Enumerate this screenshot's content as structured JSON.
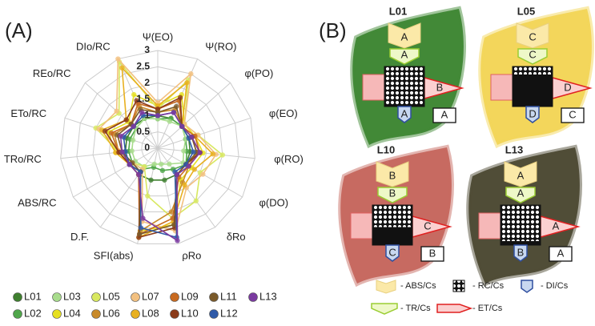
{
  "labels": [
    "(A)",
    "(B)"
  ],
  "chart_data": {
    "type": "radar",
    "categories": [
      "Ψ(EO)",
      "Ψ(RO)",
      "φ(PO)",
      "φ(EO)",
      "φ(RO)",
      "φ(DO)",
      "δRo",
      "ρRo",
      "SFI(abs)",
      "D.F.",
      "ABS/RC",
      "TRo/RC",
      "ETo/RC",
      "REo/RC",
      "DIo/RC"
    ],
    "rlim": [
      0,
      3
    ],
    "rticks": [
      0,
      0.5,
      1,
      1.5,
      2,
      2.5,
      3
    ],
    "grid": true,
    "legend": "bottom",
    "series": [
      {
        "name": "L01",
        "color": "#3f7f2f",
        "values": [
          1,
          1,
          1,
          1,
          1,
          1,
          1,
          1,
          1,
          1,
          1,
          1,
          1,
          1,
          1
        ]
      },
      {
        "name": "L02",
        "color": "#4fa64a",
        "values": [
          0.9,
          1,
          1,
          0.9,
          0.9,
          1,
          0.8,
          0.7,
          0.6,
          0.8,
          0.9,
          0.9,
          0.9,
          0.9,
          1
        ]
      },
      {
        "name": "L03",
        "color": "#a8dc8c",
        "values": [
          0.9,
          0.9,
          1,
          0.9,
          0.8,
          0.9,
          0.6,
          0.5,
          0.5,
          0.7,
          0.8,
          0.8,
          0.8,
          0.9,
          1
        ]
      },
      {
        "name": "L04",
        "color": "#e6e020",
        "values": [
          1.3,
          1.8,
          1.1,
          1.2,
          1.4,
          1.2,
          1.2,
          2.4,
          2.6,
          0.9,
          1,
          1.3,
          1.6,
          1.2,
          1.8
        ]
      },
      {
        "name": "L05",
        "color": "#d8e860",
        "values": [
          1.2,
          2.3,
          1.1,
          1.3,
          2,
          1.5,
          2,
          2.2,
          1.5,
          0.7,
          0.9,
          1.2,
          2,
          1.6,
          2.9
        ]
      },
      {
        "name": "L06",
        "color": "#c88a2a",
        "values": [
          1.1,
          1.3,
          1,
          1.1,
          1.2,
          1.1,
          1.3,
          2,
          2.6,
          1,
          1,
          1.2,
          1.4,
          1.1,
          1.4
        ]
      },
      {
        "name": "L07",
        "color": "#f2c080",
        "values": [
          1.4,
          2.5,
          1.1,
          1.3,
          1.8,
          1.6,
          1.5,
          2.6,
          2.3,
          0.8,
          0.9,
          1.1,
          1.9,
          1.7,
          3
        ]
      },
      {
        "name": "L08",
        "color": "#e8b020",
        "values": [
          1.3,
          2.2,
          1,
          1.2,
          1.7,
          1.3,
          1.4,
          2.3,
          2.8,
          0.9,
          1,
          1.3,
          1.8,
          1.3,
          2.7
        ]
      },
      {
        "name": "L09",
        "color": "#c86a20",
        "values": [
          1.2,
          1.6,
          1,
          1.2,
          1.3,
          1.1,
          1.1,
          2.2,
          2.7,
          1,
          1,
          1.2,
          1.5,
          1.1,
          1.5
        ]
      },
      {
        "name": "L10",
        "color": "#8a3a1a",
        "values": [
          1.2,
          1.7,
          1,
          1.1,
          1.3,
          1,
          1,
          2.5,
          2.8,
          0.9,
          1,
          1.2,
          1.7,
          1.3,
          1.6
        ]
      },
      {
        "name": "L11",
        "color": "#7a5a2a",
        "values": [
          1.1,
          1.4,
          1,
          1.1,
          1.2,
          1,
          1,
          2.4,
          2.7,
          0.9,
          0.9,
          1.1,
          1.3,
          1.1,
          1.3
        ]
      },
      {
        "name": "L12",
        "color": "#2f5aa8",
        "values": [
          1,
          1.2,
          1,
          1,
          1.1,
          1,
          0.9,
          2.8,
          2.5,
          0.9,
          1,
          1,
          1.1,
          1,
          1.1
        ]
      },
      {
        "name": "L13",
        "color": "#7a3aa0",
        "values": [
          1,
          1.2,
          1,
          1.1,
          1.3,
          1.1,
          1,
          2.9,
          2.2,
          1,
          1,
          1.1,
          1.2,
          1,
          1.2
        ]
      }
    ]
  },
  "diagram": {
    "leaves": [
      {
        "title": "L01",
        "color": "#2e7d22",
        "abs": "A",
        "tr": "A",
        "et": "B",
        "di": "A",
        "rc": "A"
      },
      {
        "title": "L05",
        "color": "#f2d24a",
        "abs": "C",
        "tr": "C",
        "et": "D",
        "di": "D",
        "rc": "C"
      },
      {
        "title": "L10",
        "color": "#c25a50",
        "abs": "B",
        "tr": "B",
        "et": "C",
        "di": "C",
        "rc": "B"
      },
      {
        "title": "L13",
        "color": "#3e3a22",
        "abs": "A",
        "tr": "A",
        "et": "A",
        "di": "B",
        "rc": "A"
      }
    ],
    "legend": [
      "- ABS/Cs",
      "- RC/Cs",
      "- DI/Cs",
      "- TR/Cs",
      "- ET/Cs"
    ]
  }
}
